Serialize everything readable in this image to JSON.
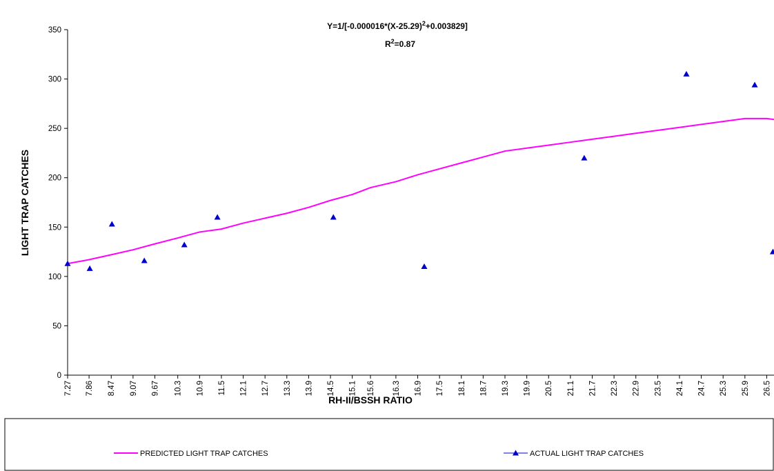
{
  "chart_data": {
    "type": "line",
    "equation": [
      "Y=1/[-0.000016*(X-25.29)",
      "2",
      "+0.003829]"
    ],
    "r_squared": [
      "R",
      "2",
      "=0.87"
    ],
    "x_label": "RH-II/BSSH RATIO",
    "y_label": "LIGHT TRAP CATCHES",
    "xlim": [
      7.27,
      26.7
    ],
    "xticks": [
      7.27,
      7.86,
      8.47,
      9.07,
      9.67,
      10.3,
      10.9,
      11.5,
      12.1,
      12.7,
      13.3,
      13.9,
      14.5,
      15.1,
      15.6,
      16.3,
      16.9,
      17.5,
      18.1,
      18.7,
      19.3,
      19.9,
      20.5,
      21.1,
      21.7,
      22.3,
      22.9,
      23.5,
      24.1,
      24.7,
      25.3,
      25.9,
      26.5
    ],
    "ylim": [
      0,
      350
    ],
    "yticks": [
      0,
      50,
      100,
      150,
      200,
      250,
      300,
      350
    ],
    "grid": false,
    "legend": "bottom",
    "series": [
      {
        "name": "PREDICTED LIGHT TRAP CATCHES",
        "color": "#ff00ff",
        "marker": "none",
        "x": [
          7.27,
          7.86,
          8.47,
          9.07,
          9.67,
          10.3,
          10.9,
          11.5,
          12.1,
          12.7,
          13.3,
          13.9,
          14.5,
          15.1,
          15.6,
          16.3,
          16.9,
          17.5,
          18.1,
          18.7,
          19.3,
          19.9,
          20.5,
          21.1,
          21.7,
          22.3,
          22.9,
          23.5,
          24.1,
          24.7,
          25.3,
          25.9,
          26.5,
          26.7
        ],
        "values": [
          113,
          117,
          122,
          127,
          133,
          139,
          145,
          148,
          154,
          159,
          164,
          170,
          177,
          183,
          190,
          196,
          203,
          209,
          215,
          221,
          227,
          230,
          233,
          236,
          239,
          242,
          245,
          248,
          251,
          254,
          257,
          260,
          260,
          259
        ]
      },
      {
        "name": "ACTUAL LIGHT TRAP CATCHES",
        "color": "#0000cc",
        "marker": "triangle",
        "x": [
          7.27,
          7.88,
          8.49,
          9.38,
          10.48,
          11.39,
          14.58,
          17.08,
          21.48,
          24.29,
          26.17,
          26.67
        ],
        "values": [
          113,
          108,
          153,
          116,
          132,
          160,
          160,
          110,
          220,
          305,
          294,
          125
        ]
      }
    ]
  }
}
